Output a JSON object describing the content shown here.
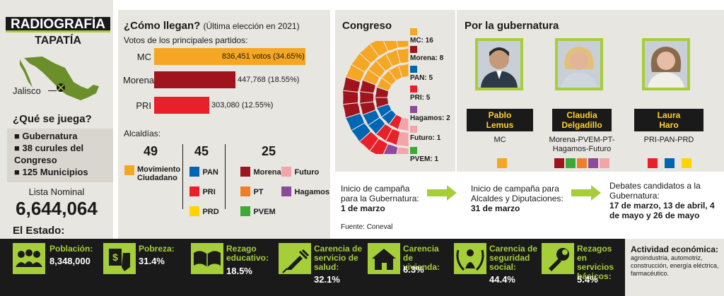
{
  "header": {
    "title_line1": "RADIOGRAFÍA",
    "title_line2": "TAPATÍA"
  },
  "map": {
    "label": "Jalisco"
  },
  "stakes": {
    "heading": "¿Qué se juega?",
    "items": [
      "■ Gubernatura",
      "■ 38 curules del Congreso",
      "■ 125 Municipios"
    ]
  },
  "lista_nominal": {
    "label": "Lista Nominal",
    "value": "6,644,064"
  },
  "estado_label": "El Estado:",
  "como_llegan": {
    "title": "¿Cómo llegan?",
    "subtitle": "(Última elección en 2021)",
    "votes_label": "Votos de los principales partidos:",
    "bars": [
      {
        "party": "MC",
        "text": "836,451 votos (34.65%)",
        "pct": 34.65,
        "color": "#f5a623"
      },
      {
        "party": "Morena",
        "text": "447,768 (18.55%)",
        "pct": 18.55,
        "color": "#a0141e"
      },
      {
        "party": "PRI",
        "text": "303,080 (12.55%)",
        "pct": 12.55,
        "color": "#e8202a"
      }
    ],
    "alcaldias_label": "Alcaldías:",
    "alcaldias": [
      {
        "count": "49",
        "parties": [
          {
            "name": "Movimiento Ciudadano",
            "color": "#f5a623"
          }
        ]
      },
      {
        "count": "45",
        "parties": [
          {
            "name": "PAN",
            "color": "#0066b3"
          },
          {
            "name": "PRI",
            "color": "#e8202a"
          },
          {
            "name": "PRD",
            "color": "#ffd400"
          }
        ]
      },
      {
        "count": "25",
        "parties": [
          {
            "name": "Morena",
            "color": "#a0141e"
          },
          {
            "name": "Futuro",
            "color": "#f4a3a8"
          },
          {
            "name": "PT",
            "color": "#f07d2a"
          },
          {
            "name": "Hagamos",
            "color": "#8e4a9a"
          },
          {
            "name": "PVEM",
            "color": "#3aaa35"
          }
        ]
      }
    ]
  },
  "congreso": {
    "title": "Congreso",
    "seats": [
      {
        "label": "MC: 16",
        "count": 16,
        "color": "#f5a623"
      },
      {
        "label": "Morena: 8",
        "count": 8,
        "color": "#a0141e"
      },
      {
        "label": "PAN: 5",
        "count": 5,
        "color": "#0066b3"
      },
      {
        "label": "PRI: 5",
        "count": 5,
        "color": "#e8202a"
      },
      {
        "label": "Hagamos: 2",
        "count": 2,
        "color": "#8e4a9a"
      },
      {
        "label": "Futuro: 1",
        "count": 1,
        "color": "#f4a3a8"
      },
      {
        "label": "PVEM: 1",
        "count": 1,
        "color": "#3aaa35"
      }
    ]
  },
  "gubernatura": {
    "title": "Por la gubernatura",
    "candidates": [
      {
        "name": "Pablo Lemus",
        "name_l1": "Pablo",
        "name_l2": "Lemus",
        "party": "MC",
        "colors": [
          "#f5a623"
        ]
      },
      {
        "name": "Claudia Delgadillo",
        "name_l1": "Claudia",
        "name_l2": "Delgadillo",
        "party": "Morena-PVEM-PT-Hagamos-Futuro",
        "colors": [
          "#a0141e",
          "#3aaa35",
          "#f07d2a",
          "#8e4a9a",
          "#f4a3a8"
        ]
      },
      {
        "name": "Laura Haro",
        "name_l1": "Laura",
        "name_l2": "Haro",
        "party": "PRI-PAN-PRD",
        "colors": [
          "#e8202a",
          "#0066b3",
          "#ffd400"
        ]
      }
    ]
  },
  "timeline": {
    "steps": [
      {
        "text": "Inicio de campaña para la Gubernatura:",
        "date": "1 de marzo"
      },
      {
        "text": "Inicio de campaña para Alcaldes y Diputaciones:",
        "date": "31 de marzo"
      },
      {
        "text": "Debates candidatos a la Gubernatura:",
        "date": "17 de marzo, 13 de abril, 4 de mayo y 26 de mayo"
      }
    ],
    "source": "Fuente: Coneval"
  },
  "indicators": [
    {
      "icon": "people-icon",
      "label": "Población:",
      "value": "8,348,000"
    },
    {
      "icon": "poverty-icon",
      "label": "Pobreza:",
      "value": "31.4%"
    },
    {
      "icon": "book-icon",
      "label": "Rezago educativo:",
      "value": "18.5%"
    },
    {
      "icon": "syringe-icon",
      "label": "Carencia de servicio de salud:",
      "value": "32.1%"
    },
    {
      "icon": "house-icon",
      "label": "Carencia de vivienda:",
      "value": "6.3%"
    },
    {
      "icon": "social-security-icon",
      "label": "Carencia de seguridad social:",
      "value": "44.4%"
    },
    {
      "icon": "wrench-icon",
      "label": "Rezagos en servicios básicos:",
      "value": "5.4%"
    }
  ],
  "actividad": {
    "label": "Actividad económica:",
    "text": "agroindustria, automotriz, construcción, energía eléctrica, farmacéutico."
  },
  "accent_color": "#a6ce39"
}
